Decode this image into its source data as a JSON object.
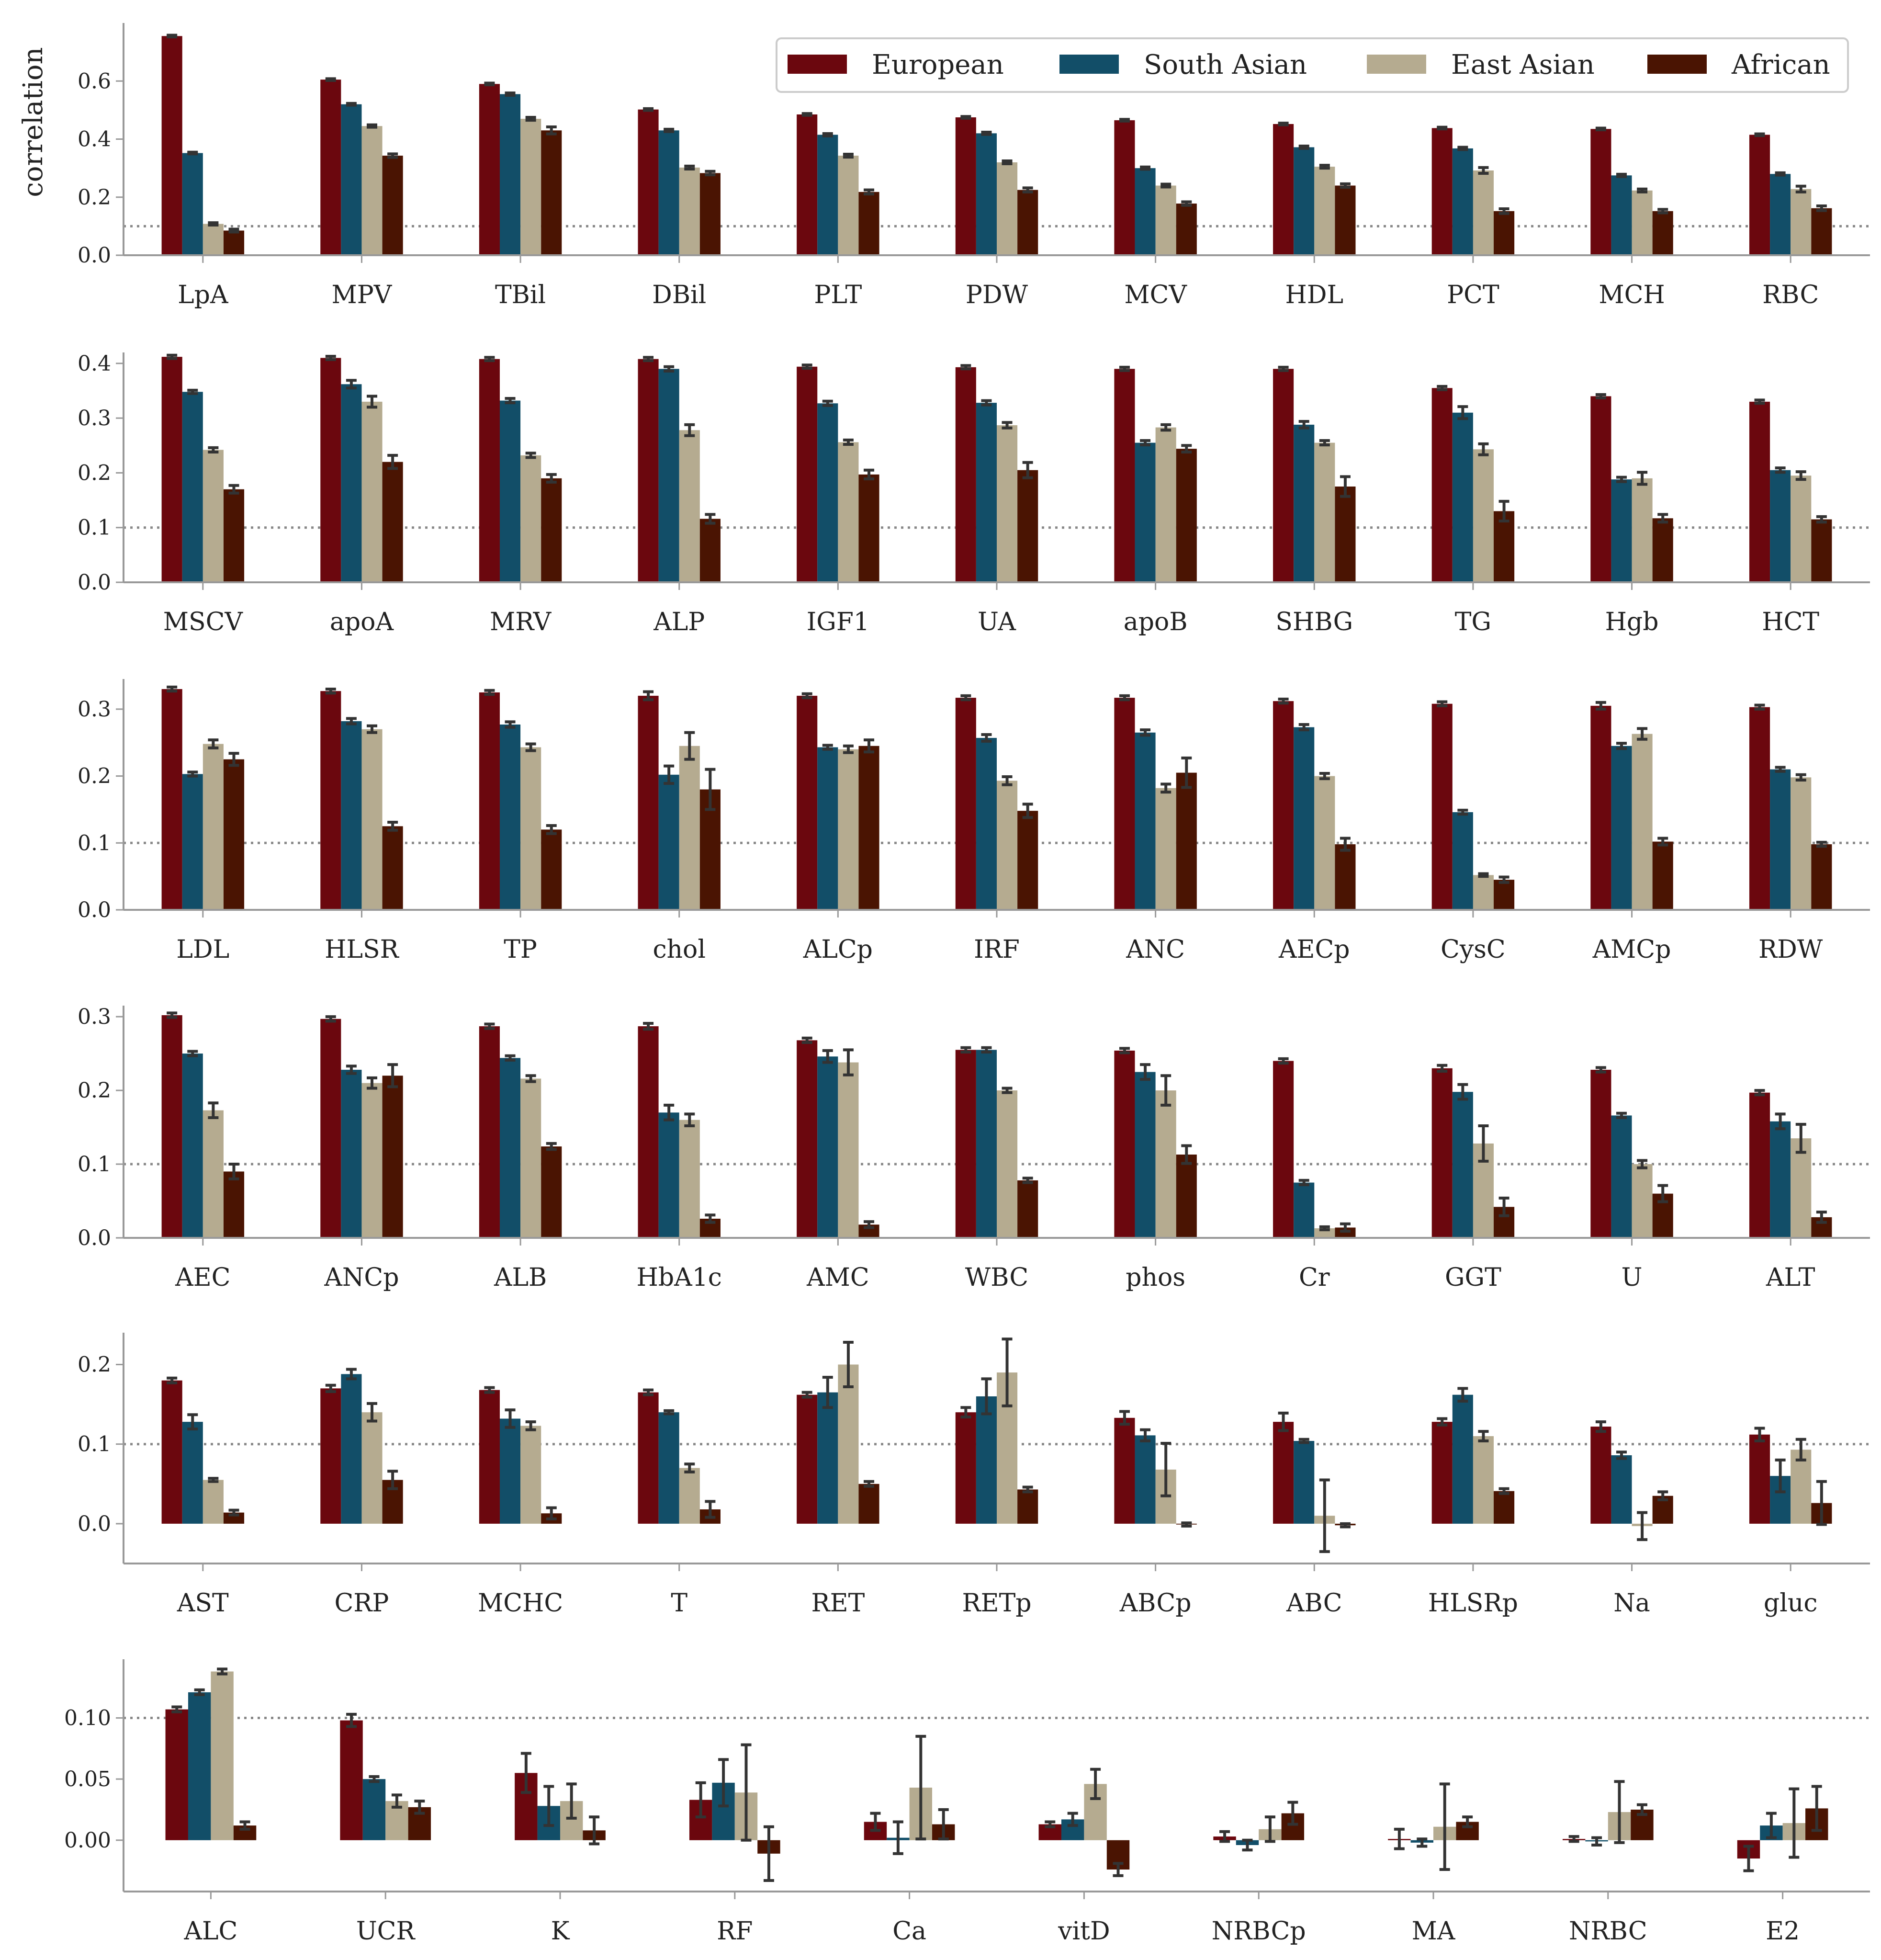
{
  "chart_data": {
    "type": "bar",
    "ylabel": "correlation",
    "reference_line": 0.1,
    "legend": {
      "placement": "top-right",
      "entries": [
        "European",
        "South Asian",
        "East Asian",
        "African"
      ]
    },
    "series_colors": [
      "#6b070e",
      "#124e68",
      "#b5ab90",
      "#4a1402"
    ],
    "error_bar_color": "#333333",
    "panels": [
      {
        "ylim": [
          0,
          0.8
        ],
        "yticks": [
          "0.0",
          "0.2",
          "0.4",
          "0.6"
        ],
        "categories": [
          "LpA",
          "MPV",
          "TBil",
          "DBil",
          "PLT",
          "PDW",
          "MCV",
          "HDL",
          "PCT",
          "MCH",
          "RBC"
        ],
        "values": [
          [
            0.755,
            0.352,
            0.108,
            0.085
          ],
          [
            0.605,
            0.52,
            0.445,
            0.343
          ],
          [
            0.59,
            0.555,
            0.47,
            0.43
          ],
          [
            0.502,
            0.43,
            0.302,
            0.283
          ],
          [
            0.485,
            0.415,
            0.343,
            0.218
          ],
          [
            0.475,
            0.42,
            0.32,
            0.225
          ],
          [
            0.465,
            0.3,
            0.24,
            0.178
          ],
          [
            0.452,
            0.372,
            0.305,
            0.24
          ],
          [
            0.438,
            0.368,
            0.292,
            0.152
          ],
          [
            0.435,
            0.275,
            0.223,
            0.152
          ],
          [
            0.415,
            0.28,
            0.228,
            0.162
          ]
        ],
        "errors": [
          [
            0.003,
            0.003,
            0.004,
            0.005
          ],
          [
            0.003,
            0.003,
            0.004,
            0.006
          ],
          [
            0.003,
            0.004,
            0.005,
            0.012
          ],
          [
            0.003,
            0.004,
            0.005,
            0.006
          ],
          [
            0.003,
            0.004,
            0.005,
            0.007
          ],
          [
            0.003,
            0.004,
            0.005,
            0.007
          ],
          [
            0.003,
            0.004,
            0.005,
            0.006
          ],
          [
            0.003,
            0.004,
            0.005,
            0.006
          ],
          [
            0.003,
            0.004,
            0.01,
            0.008
          ],
          [
            0.003,
            0.004,
            0.005,
            0.006
          ],
          [
            0.003,
            0.004,
            0.01,
            0.008
          ]
        ]
      },
      {
        "ylim": [
          0,
          0.42
        ],
        "yticks": [
          "0.0",
          "0.1",
          "0.2",
          "0.3",
          "0.4"
        ],
        "categories": [
          "MSCV",
          "apoA",
          "MRV",
          "ALP",
          "IGF1",
          "UA",
          "apoB",
          "SHBG",
          "TG",
          "Hgb",
          "HCT"
        ],
        "values": [
          [
            0.412,
            0.348,
            0.242,
            0.17
          ],
          [
            0.41,
            0.362,
            0.33,
            0.22
          ],
          [
            0.408,
            0.332,
            0.232,
            0.19
          ],
          [
            0.408,
            0.39,
            0.278,
            0.116
          ],
          [
            0.394,
            0.327,
            0.256,
            0.197
          ],
          [
            0.393,
            0.328,
            0.287,
            0.205
          ],
          [
            0.39,
            0.255,
            0.283,
            0.244
          ],
          [
            0.39,
            0.288,
            0.255,
            0.175
          ],
          [
            0.355,
            0.31,
            0.243,
            0.13
          ],
          [
            0.34,
            0.188,
            0.19,
            0.117
          ],
          [
            0.33,
            0.205,
            0.195,
            0.115
          ]
        ],
        "errors": [
          [
            0.003,
            0.003,
            0.004,
            0.007
          ],
          [
            0.003,
            0.007,
            0.01,
            0.012
          ],
          [
            0.003,
            0.004,
            0.004,
            0.007
          ],
          [
            0.003,
            0.004,
            0.01,
            0.008
          ],
          [
            0.003,
            0.004,
            0.004,
            0.008
          ],
          [
            0.003,
            0.004,
            0.005,
            0.014
          ],
          [
            0.003,
            0.004,
            0.005,
            0.006
          ],
          [
            0.003,
            0.006,
            0.004,
            0.018
          ],
          [
            0.003,
            0.011,
            0.01,
            0.018
          ],
          [
            0.003,
            0.004,
            0.011,
            0.007
          ],
          [
            0.003,
            0.004,
            0.007,
            0.005
          ]
        ]
      },
      {
        "ylim": [
          0,
          0.345
        ],
        "yticks": [
          "0.0",
          "0.1",
          "0.2",
          "0.3"
        ],
        "categories": [
          "LDL",
          "HLSR",
          "TP",
          "chol",
          "ALCp",
          "IRF",
          "ANC",
          "AECp",
          "CysC",
          "AMCp",
          "RDW"
        ],
        "values": [
          [
            0.33,
            0.203,
            0.248,
            0.225
          ],
          [
            0.327,
            0.282,
            0.27,
            0.125
          ],
          [
            0.325,
            0.277,
            0.243,
            0.12
          ],
          [
            0.32,
            0.202,
            0.245,
            0.18
          ],
          [
            0.32,
            0.243,
            0.24,
            0.245
          ],
          [
            0.317,
            0.257,
            0.193,
            0.148
          ],
          [
            0.317,
            0.265,
            0.182,
            0.205
          ],
          [
            0.312,
            0.273,
            0.2,
            0.098
          ],
          [
            0.308,
            0.146,
            0.052,
            0.045
          ],
          [
            0.305,
            0.245,
            0.263,
            0.102
          ],
          [
            0.303,
            0.21,
            0.198,
            0.098
          ]
        ],
        "errors": [
          [
            0.003,
            0.003,
            0.006,
            0.009
          ],
          [
            0.003,
            0.004,
            0.005,
            0.006
          ],
          [
            0.003,
            0.004,
            0.005,
            0.006
          ],
          [
            0.006,
            0.013,
            0.02,
            0.03
          ],
          [
            0.003,
            0.003,
            0.005,
            0.009
          ],
          [
            0.003,
            0.005,
            0.006,
            0.01
          ],
          [
            0.003,
            0.004,
            0.006,
            0.022
          ],
          [
            0.003,
            0.004,
            0.004,
            0.009
          ],
          [
            0.003,
            0.003,
            0.002,
            0.004
          ],
          [
            0.005,
            0.004,
            0.008,
            0.005
          ],
          [
            0.003,
            0.003,
            0.004,
            0.003
          ]
        ]
      },
      {
        "ylim": [
          0,
          0.315
        ],
        "yticks": [
          "0.0",
          "0.1",
          "0.2",
          "0.3"
        ],
        "categories": [
          "AEC",
          "ANCp",
          "ALB",
          "HbA1c",
          "AMC",
          "WBC",
          "phos",
          "Cr",
          "GGT",
          "U",
          "ALT"
        ],
        "values": [
          [
            0.302,
            0.25,
            0.173,
            0.09
          ],
          [
            0.297,
            0.228,
            0.21,
            0.22
          ],
          [
            0.287,
            0.244,
            0.216,
            0.124
          ],
          [
            0.287,
            0.17,
            0.16,
            0.026
          ],
          [
            0.268,
            0.246,
            0.238,
            0.018
          ],
          [
            0.255,
            0.255,
            0.2,
            0.078
          ],
          [
            0.254,
            0.225,
            0.2,
            0.113
          ],
          [
            0.24,
            0.075,
            0.013,
            0.014
          ],
          [
            0.23,
            0.198,
            0.128,
            0.042
          ],
          [
            0.228,
            0.166,
            0.1,
            0.06
          ],
          [
            0.197,
            0.158,
            0.135,
            0.028
          ]
        ],
        "errors": [
          [
            0.003,
            0.003,
            0.01,
            0.01
          ],
          [
            0.003,
            0.005,
            0.007,
            0.015
          ],
          [
            0.003,
            0.003,
            0.004,
            0.004
          ],
          [
            0.004,
            0.01,
            0.008,
            0.005
          ],
          [
            0.003,
            0.008,
            0.017,
            0.004
          ],
          [
            0.003,
            0.003,
            0.003,
            0.003
          ],
          [
            0.003,
            0.01,
            0.02,
            0.012
          ],
          [
            0.003,
            0.003,
            0.002,
            0.005
          ],
          [
            0.004,
            0.01,
            0.024,
            0.012
          ],
          [
            0.003,
            0.003,
            0.005,
            0.011
          ],
          [
            0.003,
            0.01,
            0.019,
            0.007
          ]
        ]
      },
      {
        "ylim": [
          -0.05,
          0.24
        ],
        "yticks": [
          "0.0",
          "0.1",
          "0.2"
        ],
        "categories": [
          "AST",
          "CRP",
          "MCHC",
          "T",
          "RET",
          "RETp",
          "ABCp",
          "ABC",
          "HLSRp",
          "Na",
          "gluc"
        ],
        "values": [
          [
            0.18,
            0.128,
            0.055,
            0.014
          ],
          [
            0.17,
            0.188,
            0.14,
            0.055
          ],
          [
            0.168,
            0.132,
            0.123,
            0.013
          ],
          [
            0.165,
            0.14,
            0.07,
            0.018
          ],
          [
            0.162,
            0.165,
            0.2,
            0.05
          ],
          [
            0.14,
            0.16,
            0.19,
            0.043
          ],
          [
            0.133,
            0.111,
            0.068,
            -0.001
          ],
          [
            0.128,
            0.104,
            0.01,
            -0.002
          ],
          [
            0.128,
            0.162,
            0.11,
            0.041
          ],
          [
            0.122,
            0.086,
            -0.003,
            0.035
          ],
          [
            0.112,
            0.06,
            0.093,
            0.026
          ]
        ],
        "errors": [
          [
            0.003,
            0.009,
            0.002,
            0.003
          ],
          [
            0.004,
            0.006,
            0.011,
            0.011
          ],
          [
            0.003,
            0.011,
            0.005,
            0.007
          ],
          [
            0.003,
            0.002,
            0.005,
            0.01
          ],
          [
            0.003,
            0.019,
            0.028,
            0.003
          ],
          [
            0.006,
            0.022,
            0.042,
            0.003
          ],
          [
            0.008,
            0.007,
            0.033,
            0.002
          ],
          [
            0.011,
            0.002,
            0.045,
            0.002
          ],
          [
            0.004,
            0.008,
            0.006,
            0.003
          ],
          [
            0.006,
            0.004,
            0.017,
            0.005
          ],
          [
            0.008,
            0.02,
            0.013,
            0.027
          ]
        ]
      },
      {
        "ylim": [
          -0.042,
          0.148
        ],
        "yticks": [
          "0.00",
          "0.05",
          "0.10"
        ],
        "categories": [
          "ALC",
          "UCR",
          "K",
          "RF",
          "Ca",
          "vitD",
          "NRBCp",
          "MA",
          "NRBC",
          "E2"
        ],
        "values": [
          [
            0.107,
            0.121,
            0.138,
            0.012
          ],
          [
            0.098,
            0.05,
            0.032,
            0.027
          ],
          [
            0.055,
            0.028,
            0.032,
            0.008
          ],
          [
            0.033,
            0.047,
            0.039,
            -0.011
          ],
          [
            0.015,
            0.002,
            0.043,
            0.013
          ],
          [
            0.013,
            0.017,
            0.046,
            -0.024
          ],
          [
            0.003,
            -0.004,
            0.009,
            0.022
          ],
          [
            0.001,
            -0.002,
            0.011,
            0.015
          ],
          [
            0.001,
            -0.001,
            0.023,
            0.025
          ],
          [
            -0.015,
            0.012,
            0.014,
            0.026
          ]
        ],
        "errors": [
          [
            0.002,
            0.002,
            0.002,
            0.003
          ],
          [
            0.005,
            0.002,
            0.005,
            0.005
          ],
          [
            0.016,
            0.016,
            0.014,
            0.011
          ],
          [
            0.014,
            0.019,
            0.039,
            0.022
          ],
          [
            0.007,
            0.013,
            0.042,
            0.012
          ],
          [
            0.002,
            0.005,
            0.012,
            0.005
          ],
          [
            0.004,
            0.004,
            0.01,
            0.009
          ],
          [
            0.008,
            0.003,
            0.035,
            0.004
          ],
          [
            0.002,
            0.003,
            0.025,
            0.004
          ],
          [
            0.01,
            0.01,
            0.028,
            0.018
          ]
        ]
      }
    ]
  }
}
